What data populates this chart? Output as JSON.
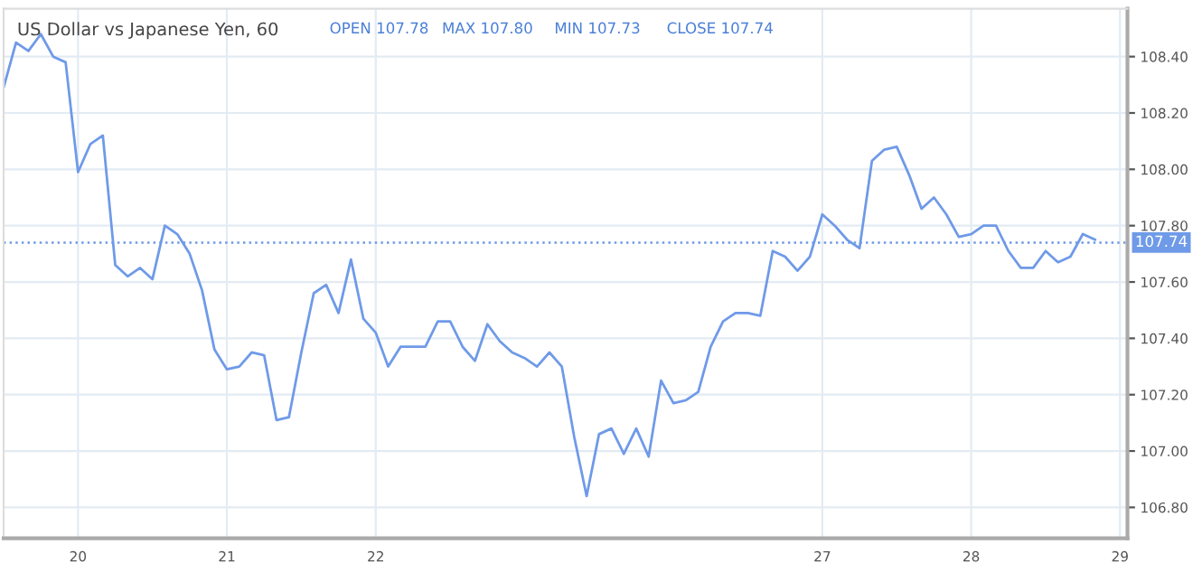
{
  "chart_data": {
    "type": "line",
    "title": "US Dollar vs Japanese Yen, 60",
    "annotations": [
      "OPEN 107.78",
      "MAX 107.80",
      "MIN 107.73",
      "CLOSE 107.74"
    ],
    "categories": [
      null,
      null,
      null,
      null,
      null,
      null,
      "20",
      null,
      null,
      null,
      null,
      null,
      null,
      null,
      null,
      null,
      null,
      null,
      "21",
      null,
      null,
      null,
      null,
      null,
      null,
      null,
      null,
      null,
      null,
      null,
      "22",
      null,
      null,
      null,
      null,
      null,
      null,
      null,
      null,
      null,
      null,
      null,
      null,
      null,
      null,
      null,
      null,
      null,
      null,
      null,
      null,
      null,
      null,
      null,
      null,
      null,
      null,
      null,
      null,
      null,
      null,
      null,
      null,
      null,
      null,
      null,
      "27",
      null,
      null,
      null,
      null,
      null,
      null,
      null,
      null,
      null,
      null,
      null,
      "28",
      null,
      null,
      null,
      null,
      null,
      null,
      null,
      null,
      null,
      null,
      null,
      "29"
    ],
    "series": [
      {
        "color": "#6f9ae8",
        "values": [
          108.29,
          108.45,
          108.42,
          108.48,
          108.4,
          108.38,
          107.99,
          108.09,
          108.12,
          107.66,
          107.62,
          107.65,
          107.61,
          107.8,
          107.77,
          107.7,
          107.57,
          107.36,
          107.29,
          107.3,
          107.35,
          107.34,
          107.11,
          107.12,
          107.35,
          107.56,
          107.59,
          107.49,
          107.68,
          107.47,
          107.42,
          107.3,
          107.37,
          107.37,
          107.37,
          107.46,
          107.46,
          107.37,
          107.32,
          107.45,
          107.39,
          107.35,
          107.33,
          107.3,
          107.35,
          107.3,
          107.05,
          106.84,
          107.06,
          107.08,
          106.99,
          107.08,
          106.98,
          107.25,
          107.17,
          107.18,
          107.21,
          107.37,
          107.46,
          107.49,
          107.49,
          107.48,
          107.71,
          107.69,
          107.64,
          107.69,
          107.84,
          107.8,
          107.75,
          107.72,
          108.03,
          108.07,
          108.08,
          107.98,
          107.86,
          107.9,
          107.84,
          107.76,
          107.77,
          107.8,
          107.8,
          107.71,
          107.65,
          107.65,
          107.71,
          107.67,
          107.69,
          107.77,
          107.75,
          null,
          null
        ]
      }
    ],
    "ylim": [
      106.69,
      108.57
    ],
    "yticks": [
      {
        "value": 106.8,
        "label": "106.80"
      },
      {
        "value": 107.0,
        "label": "107.00"
      },
      {
        "value": 107.2,
        "label": "107.20"
      },
      {
        "value": 107.4,
        "label": "107.40"
      },
      {
        "value": 107.6,
        "label": "107.60"
      },
      {
        "value": 107.8,
        "label": "107.80"
      },
      {
        "value": 108.0,
        "label": "108.00"
      },
      {
        "value": 108.2,
        "label": "108.20"
      },
      {
        "value": 108.4,
        "label": "108.40"
      }
    ],
    "ref_lines": [
      {
        "axis": "y",
        "value": 107.74,
        "label": "107.74",
        "color": "#6f9ae8",
        "line_style": "dotted"
      }
    ],
    "grid": true,
    "marker": "none",
    "line_style": "solid"
  }
}
